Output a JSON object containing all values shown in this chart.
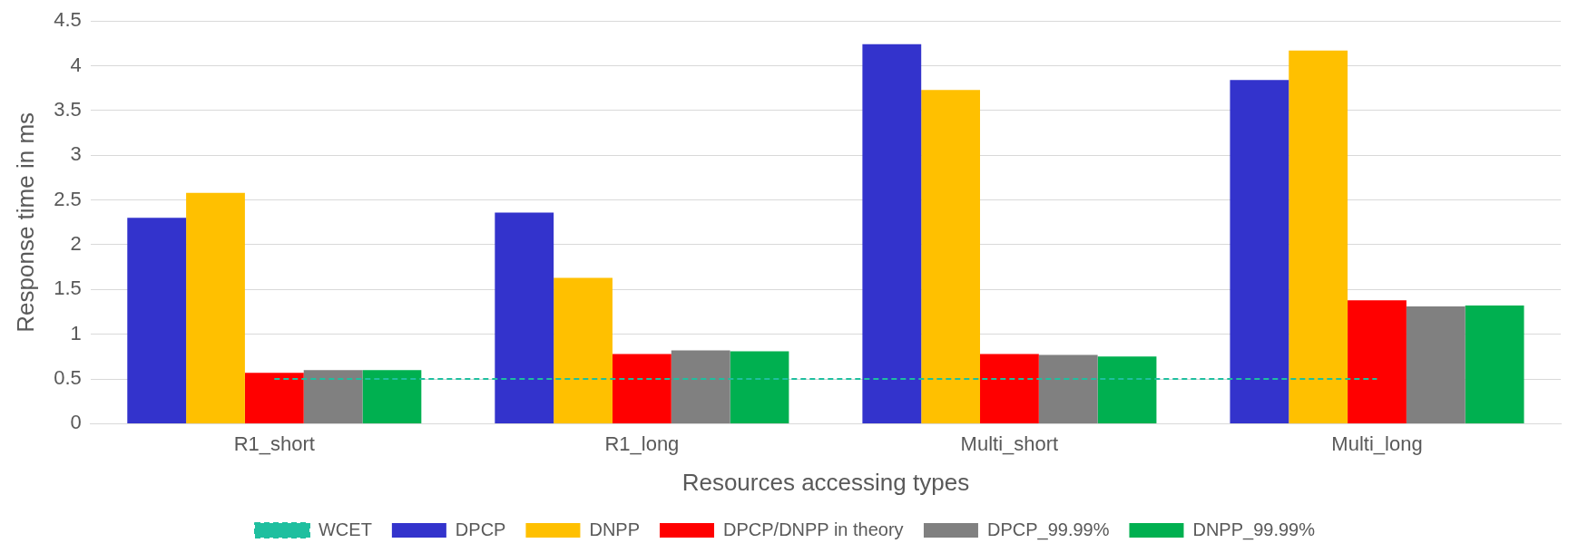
{
  "chart_data": {
    "type": "bar",
    "xlabel": "Resources accessing types",
    "ylabel": "Response time in ms",
    "categories": [
      "R1_short",
      "R1_long",
      "Multi_short",
      "Multi_long"
    ],
    "series": [
      {
        "name": "DPCP",
        "color": "#3333cc",
        "values": [
          2.3,
          2.36,
          4.24,
          3.84
        ]
      },
      {
        "name": "DNPP",
        "color": "#ffc000",
        "values": [
          2.58,
          1.63,
          3.73,
          4.17
        ]
      },
      {
        "name": "DPCP/DNPP in theory",
        "color": "#ff0000",
        "values": [
          0.57,
          0.78,
          0.78,
          1.38
        ]
      },
      {
        "name": "DPCP_99.99%",
        "color": "#808080",
        "values": [
          0.6,
          0.82,
          0.77,
          1.31
        ]
      },
      {
        "name": "DNPP_99.99%",
        "color": "#00b050",
        "values": [
          0.6,
          0.81,
          0.75,
          1.32
        ]
      },
      {
        "name": "WCET",
        "color": "#1fbf9f",
        "type": "line",
        "line_style": "dashed",
        "values": [
          0.5,
          0.5,
          0.5,
          0.5
        ]
      }
    ],
    "ylim": [
      0,
      4.5
    ],
    "yticks": [
      0,
      0.5,
      1,
      1.5,
      2,
      2.5,
      3,
      3.5,
      4,
      4.5
    ],
    "grid": "y",
    "legend": "bottom"
  }
}
